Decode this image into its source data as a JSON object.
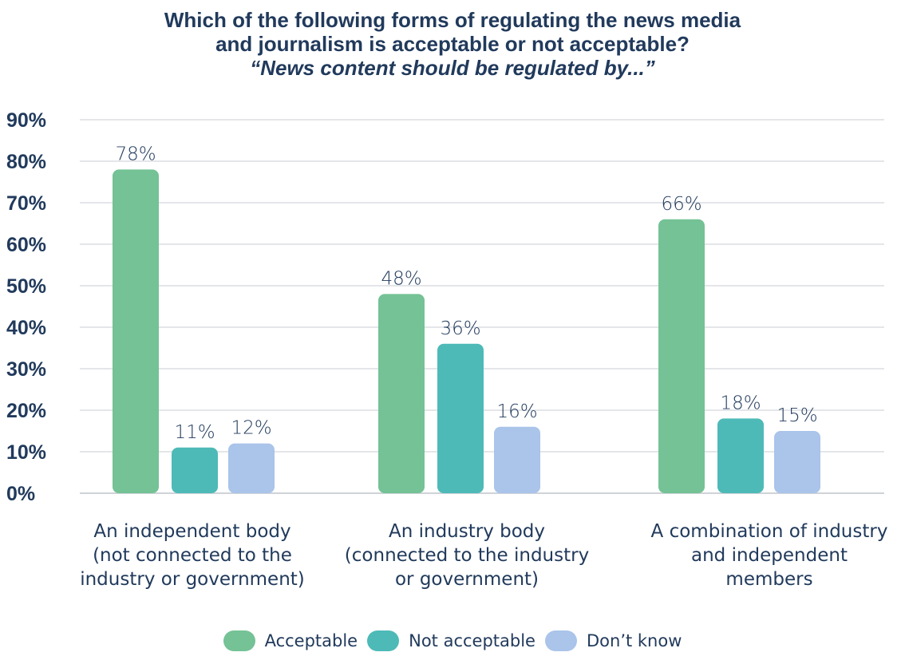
{
  "chart_data": {
    "type": "bar",
    "title": "Which of the following forms of regulating the news media",
    "title_line2": "and journalism is acceptable or not acceptable?",
    "subtitle": "“News content should be regulated by...”",
    "categories": [
      [
        "An independent body",
        "(not connected to the",
        "industry or government)"
      ],
      [
        "An industry body",
        "(connected to the industry",
        "or government)"
      ],
      [
        "A combination of industry",
        "and independent",
        "members"
      ]
    ],
    "series": [
      {
        "name": "Acceptable",
        "color": "#74c295",
        "values": [
          78,
          48,
          66
        ]
      },
      {
        "name": "Not acceptable",
        "color": "#4dbab7",
        "values": [
          11,
          36,
          18
        ]
      },
      {
        "name": "Don’t know",
        "color": "#aac4ea",
        "values": [
          12,
          16,
          15
        ]
      }
    ],
    "data_labels": [
      [
        "78%",
        "48%",
        "66%"
      ],
      [
        "11%",
        "36%",
        "18%"
      ],
      [
        "12%",
        "16%",
        "15%"
      ]
    ],
    "y_ticks": [
      "0%",
      "10%",
      "20%",
      "30%",
      "40%",
      "50%",
      "60%",
      "70%",
      "80%",
      "90%"
    ],
    "ylim": [
      0,
      90
    ],
    "grid": true,
    "legend_position": "bottom"
  }
}
